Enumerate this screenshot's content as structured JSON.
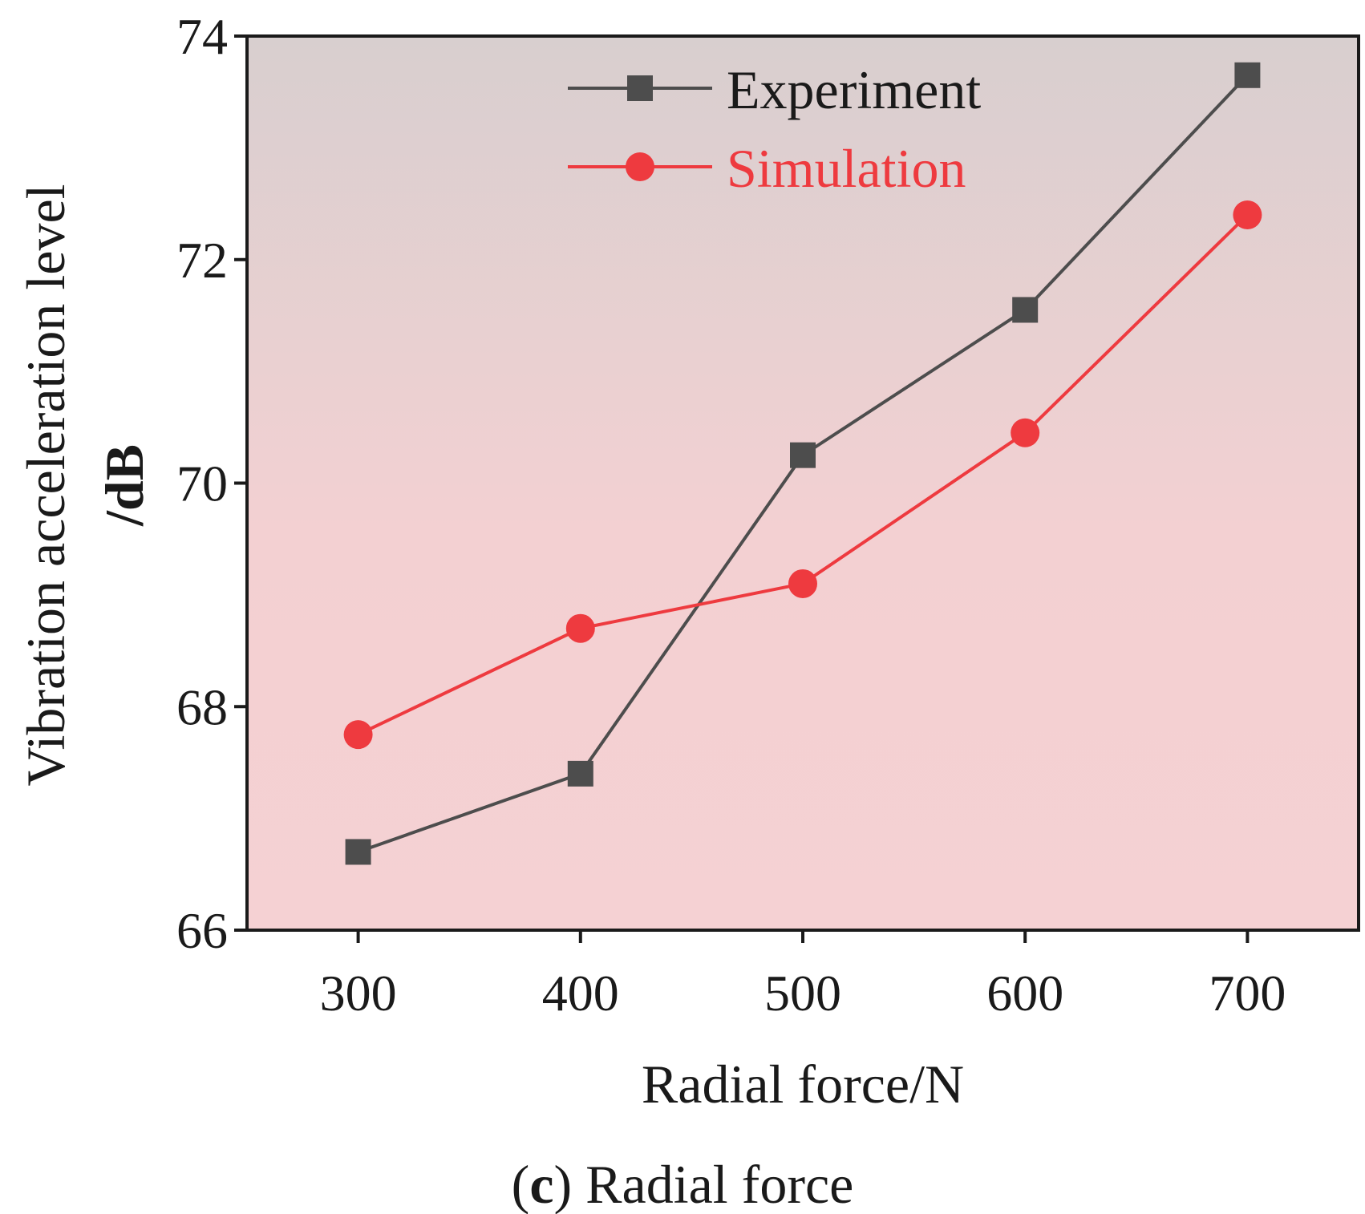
{
  "chart_data": {
    "type": "line",
    "x": [
      300,
      400,
      500,
      600,
      700
    ],
    "xlim": [
      250,
      750
    ],
    "ylim": [
      66,
      74
    ],
    "xticks": [
      300,
      400,
      500,
      600,
      700
    ],
    "yticks": [
      66,
      68,
      70,
      72,
      74
    ],
    "xlabel": "Radial force/N",
    "ylabel_line1": "Vibration acceleration level",
    "ylabel_line2": "/dB",
    "caption_letter": "c",
    "caption_open": "(",
    "caption_close": ")",
    "caption_text": " Radial force",
    "legend_position": "top-center",
    "series": [
      {
        "name": "Experiment",
        "marker": "square",
        "color": "#4d4d4d",
        "values": [
          66.7,
          67.4,
          70.25,
          71.55,
          73.65
        ]
      },
      {
        "name": "Simulation",
        "marker": "circle",
        "color": "#ee3a3f",
        "values": [
          67.75,
          68.7,
          69.1,
          70.45,
          72.4
        ]
      }
    ],
    "background_gradient": [
      "#d8cfcf",
      "#f5d1d3"
    ]
  }
}
